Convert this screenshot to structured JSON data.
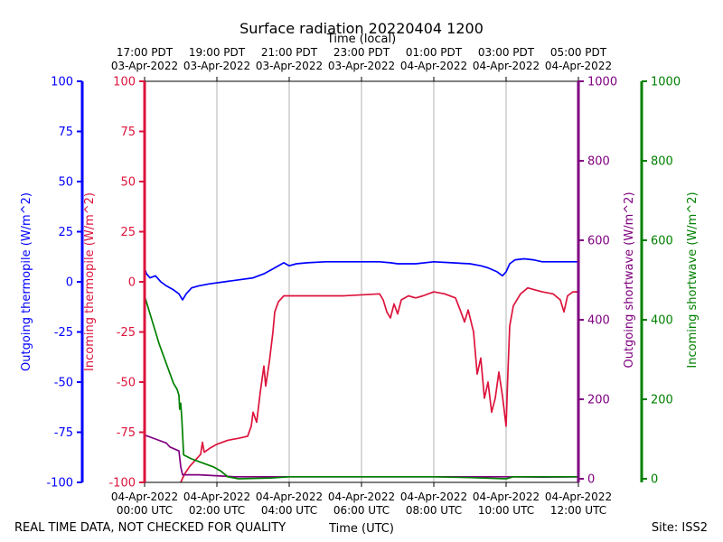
{
  "chart_data": {
    "type": "line",
    "title": "Surface radiation 20220404 1200",
    "xlabel_bottom": "Time (UTC)",
    "xlabel_top": "Time (local)",
    "footer_left": "REAL TIME DATA, NOT CHECKED FOR QUALITY",
    "footer_right": "Site: ISS2",
    "x_range_hours": [
      0,
      12
    ],
    "x_ticks_utc": [
      {
        "h": 0,
        "line1": "04-Apr-2022",
        "line2": "00:00 UTC"
      },
      {
        "h": 2,
        "line1": "04-Apr-2022",
        "line2": "02:00 UTC"
      },
      {
        "h": 4,
        "line1": "04-Apr-2022",
        "line2": "04:00 UTC"
      },
      {
        "h": 6,
        "line1": "04-Apr-2022",
        "line2": "06:00 UTC"
      },
      {
        "h": 8,
        "line1": "04-Apr-2022",
        "line2": "08:00 UTC"
      },
      {
        "h": 10,
        "line1": "04-Apr-2022",
        "line2": "10:00 UTC"
      },
      {
        "h": 12,
        "line1": "04-Apr-2022",
        "line2": "12:00 UTC"
      }
    ],
    "x_ticks_local": [
      {
        "h": 0,
        "line1": "17:00 PDT",
        "line2": "03-Apr-2022"
      },
      {
        "h": 2,
        "line1": "19:00 PDT",
        "line2": "03-Apr-2022"
      },
      {
        "h": 4,
        "line1": "21:00 PDT",
        "line2": "03-Apr-2022"
      },
      {
        "h": 6,
        "line1": "23:00 PDT",
        "line2": "03-Apr-2022"
      },
      {
        "h": 8,
        "line1": "01:00 PDT",
        "line2": "04-Apr-2022"
      },
      {
        "h": 10,
        "line1": "03:00 PDT",
        "line2": "04-Apr-2022"
      },
      {
        "h": 12,
        "line1": "05:00 PDT",
        "line2": "04-Apr-2022"
      }
    ],
    "axes": [
      {
        "id": "out_thermo",
        "label": "Outgoing thermopile (W/m^2)",
        "color": "#0000ff",
        "ylim": [
          -100,
          100
        ],
        "ticks": [
          100,
          75,
          50,
          25,
          0,
          -25,
          -50,
          -75,
          -100
        ]
      },
      {
        "id": "in_thermo",
        "label": "Incoming thermopile (W/m^2)",
        "color": "#dc143c",
        "ylim": [
          -100,
          100
        ],
        "ticks": [
          100,
          75,
          50,
          25,
          0,
          -25,
          -50,
          -75,
          -100
        ]
      },
      {
        "id": "out_sw",
        "label": "Outgoing shortwave (W/m^2)",
        "color": "#800080",
        "ylim": [
          0,
          1000
        ],
        "ticks": [
          1000,
          800,
          600,
          400,
          200,
          0
        ]
      },
      {
        "id": "in_sw",
        "label": "Incoming shortwave (W/m^2)",
        "color": "#008000",
        "ylim": [
          0,
          1000
        ],
        "ticks": [
          1000,
          800,
          600,
          400,
          200,
          0
        ]
      }
    ],
    "series": [
      {
        "name": "Outgoing thermopile",
        "axis": "out_thermo",
        "color": "#0000ff",
        "points": [
          [
            0,
            7
          ],
          [
            0.05,
            4
          ],
          [
            0.15,
            2
          ],
          [
            0.3,
            3
          ],
          [
            0.45,
            0
          ],
          [
            0.6,
            -2
          ],
          [
            0.8,
            -4
          ],
          [
            0.95,
            -6
          ],
          [
            1.05,
            -9
          ],
          [
            1.15,
            -6
          ],
          [
            1.3,
            -3
          ],
          [
            1.5,
            -2
          ],
          [
            1.8,
            -1
          ],
          [
            2.2,
            0
          ],
          [
            2.6,
            1
          ],
          [
            3.0,
            2
          ],
          [
            3.3,
            4
          ],
          [
            3.5,
            6
          ],
          [
            3.7,
            8
          ],
          [
            3.85,
            9.5
          ],
          [
            4.0,
            8
          ],
          [
            4.2,
            9
          ],
          [
            4.5,
            9.5
          ],
          [
            5,
            10
          ],
          [
            5.5,
            10
          ],
          [
            6,
            10
          ],
          [
            6.5,
            10
          ],
          [
            6.8,
            9.5
          ],
          [
            7,
            9
          ],
          [
            7.5,
            9
          ],
          [
            8,
            10
          ],
          [
            8.5,
            9.5
          ],
          [
            9,
            9
          ],
          [
            9.3,
            8
          ],
          [
            9.5,
            7
          ],
          [
            9.75,
            5
          ],
          [
            9.9,
            3
          ],
          [
            10.0,
            5
          ],
          [
            10.1,
            9
          ],
          [
            10.25,
            11
          ],
          [
            10.5,
            11.5
          ],
          [
            10.75,
            11
          ],
          [
            11,
            10
          ],
          [
            11.5,
            10
          ],
          [
            12,
            10
          ]
        ]
      },
      {
        "name": "Incoming thermopile",
        "axis": "in_thermo",
        "color": "#dc143c",
        "points": [
          [
            1.0,
            -100
          ],
          [
            1.1,
            -96
          ],
          [
            1.25,
            -92
          ],
          [
            1.45,
            -88
          ],
          [
            1.55,
            -86
          ],
          [
            1.6,
            -80
          ],
          [
            1.65,
            -85
          ],
          [
            1.8,
            -83
          ],
          [
            2.0,
            -81
          ],
          [
            2.3,
            -79
          ],
          [
            2.6,
            -78
          ],
          [
            2.85,
            -77
          ],
          [
            2.95,
            -72
          ],
          [
            3.0,
            -65
          ],
          [
            3.1,
            -70
          ],
          [
            3.2,
            -55
          ],
          [
            3.3,
            -42
          ],
          [
            3.35,
            -52
          ],
          [
            3.45,
            -40
          ],
          [
            3.55,
            -25
          ],
          [
            3.6,
            -15
          ],
          [
            3.7,
            -10
          ],
          [
            3.85,
            -7
          ],
          [
            4.5,
            -7
          ],
          [
            5.5,
            -7
          ],
          [
            6.5,
            -6
          ],
          [
            6.6,
            -9
          ],
          [
            6.7,
            -15
          ],
          [
            6.8,
            -18
          ],
          [
            6.9,
            -11
          ],
          [
            7.0,
            -16
          ],
          [
            7.1,
            -9
          ],
          [
            7.3,
            -7
          ],
          [
            7.5,
            -8
          ],
          [
            7.7,
            -7
          ],
          [
            8.0,
            -5
          ],
          [
            8.3,
            -6
          ],
          [
            8.6,
            -8
          ],
          [
            8.75,
            -15
          ],
          [
            8.85,
            -20
          ],
          [
            8.95,
            -14
          ],
          [
            9.1,
            -25
          ],
          [
            9.2,
            -46
          ],
          [
            9.3,
            -38
          ],
          [
            9.4,
            -58
          ],
          [
            9.5,
            -50
          ],
          [
            9.6,
            -65
          ],
          [
            9.7,
            -58
          ],
          [
            9.8,
            -45
          ],
          [
            9.9,
            -57
          ],
          [
            10.0,
            -72
          ],
          [
            10.05,
            -45
          ],
          [
            10.1,
            -22
          ],
          [
            10.2,
            -12
          ],
          [
            10.4,
            -6
          ],
          [
            10.6,
            -3
          ],
          [
            10.8,
            -4
          ],
          [
            11.0,
            -5
          ],
          [
            11.3,
            -6
          ],
          [
            11.5,
            -9
          ],
          [
            11.6,
            -15
          ],
          [
            11.7,
            -7
          ],
          [
            11.85,
            -5
          ],
          [
            12,
            -5
          ]
        ]
      },
      {
        "name": "Outgoing shortwave",
        "axis": "out_sw",
        "color": "#800080",
        "points": [
          [
            0,
            110
          ],
          [
            0.3,
            100
          ],
          [
            0.6,
            90
          ],
          [
            0.7,
            80
          ],
          [
            0.95,
            70
          ],
          [
            1.0,
            30
          ],
          [
            1.05,
            10
          ],
          [
            1.5,
            10
          ],
          [
            2.5,
            5
          ],
          [
            4,
            5
          ],
          [
            6,
            5
          ],
          [
            8,
            5
          ],
          [
            10,
            5
          ],
          [
            11,
            4
          ],
          [
            12,
            5
          ]
        ]
      },
      {
        "name": "Incoming shortwave",
        "axis": "in_sw",
        "color": "#008000",
        "points": [
          [
            0,
            460
          ],
          [
            0.2,
            400
          ],
          [
            0.4,
            340
          ],
          [
            0.6,
            290
          ],
          [
            0.8,
            240
          ],
          [
            0.9,
            225
          ],
          [
            0.95,
            210
          ],
          [
            0.97,
            175
          ],
          [
            1.0,
            190
          ],
          [
            1.03,
            150
          ],
          [
            1.08,
            60
          ],
          [
            1.3,
            50
          ],
          [
            1.6,
            40
          ],
          [
            1.9,
            30
          ],
          [
            2.1,
            20
          ],
          [
            2.3,
            5
          ],
          [
            2.6,
            0
          ],
          [
            3.5,
            2
          ],
          [
            4.0,
            5
          ],
          [
            6,
            5
          ],
          [
            8,
            5
          ],
          [
            9,
            3
          ],
          [
            10,
            0
          ],
          [
            10.2,
            5
          ],
          [
            11,
            5
          ],
          [
            12,
            5
          ]
        ]
      }
    ]
  }
}
